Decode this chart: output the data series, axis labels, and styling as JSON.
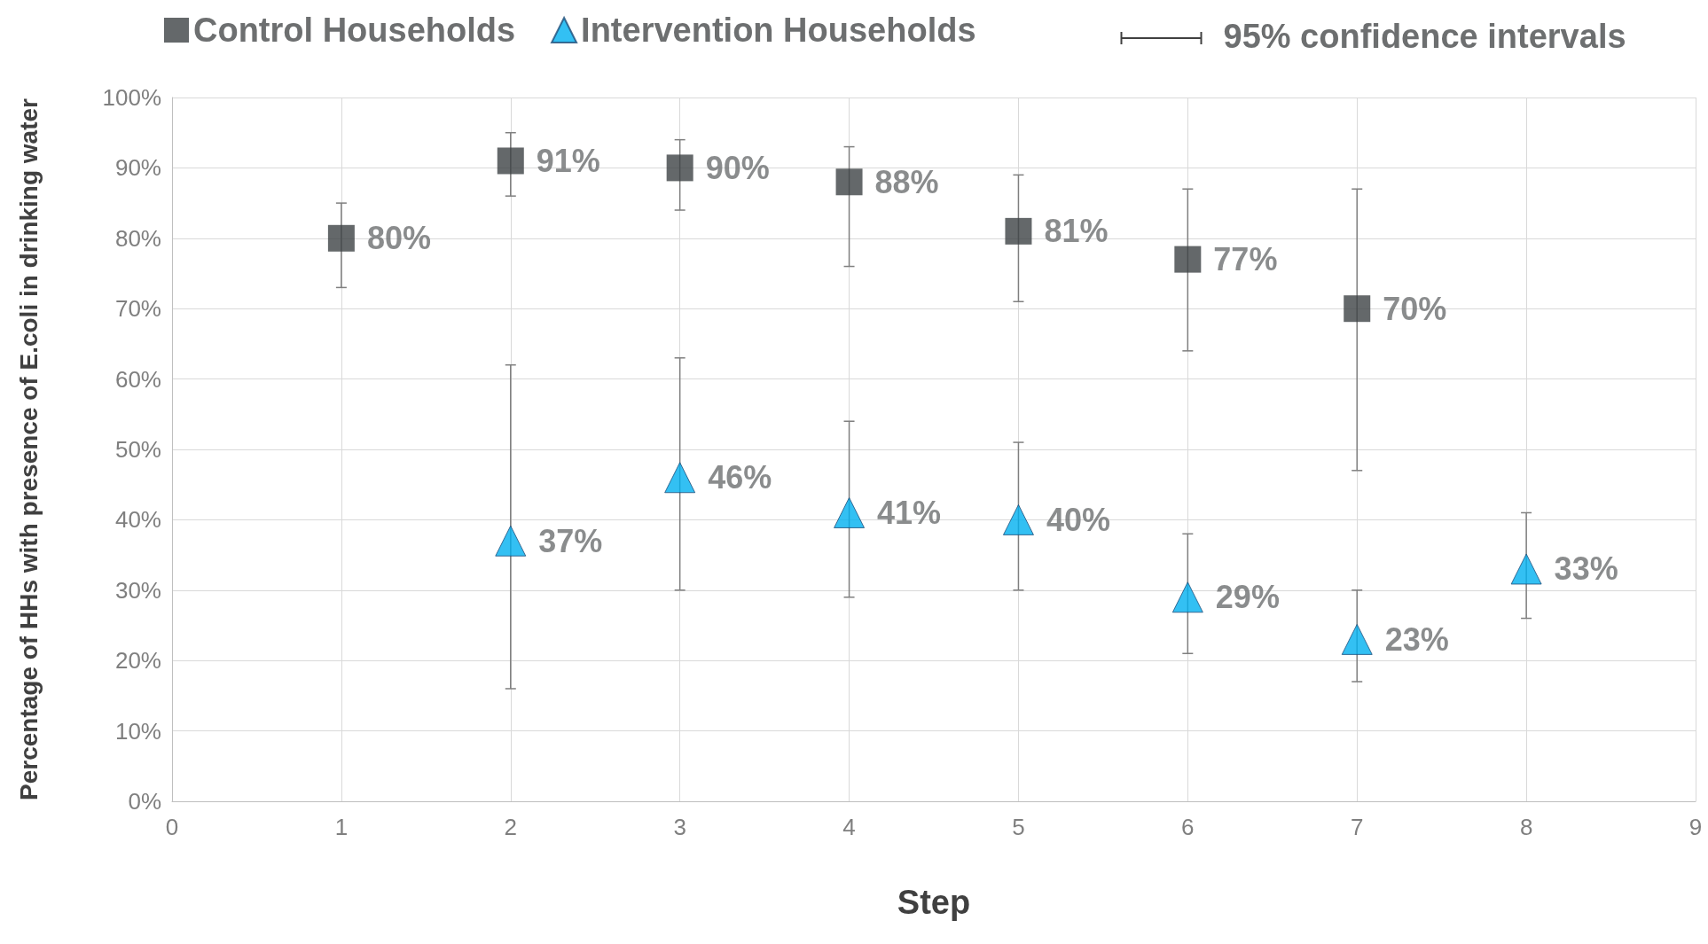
{
  "chart_data": {
    "type": "scatter",
    "xlabel": "Step",
    "ylabel": "Percentage of HHs with presence of E.coli in drinking water",
    "xlim": [
      0,
      9
    ],
    "xticks": [
      0,
      1,
      2,
      3,
      4,
      5,
      6,
      7,
      8,
      9
    ],
    "ylim": [
      0,
      100
    ],
    "yticks": [
      {
        "value": 0,
        "label": "0%"
      },
      {
        "value": 10,
        "label": "10%"
      },
      {
        "value": 20,
        "label": "20%"
      },
      {
        "value": 30,
        "label": "30%"
      },
      {
        "value": 40,
        "label": "40%"
      },
      {
        "value": 50,
        "label": "50%"
      },
      {
        "value": 60,
        "label": "60%"
      },
      {
        "value": 70,
        "label": "70%"
      },
      {
        "value": 80,
        "label": "80%"
      },
      {
        "value": 90,
        "label": "90%"
      },
      {
        "value": 100,
        "label": "100%"
      }
    ],
    "grid": true,
    "legend": "top",
    "annotations": [
      "95% confidence intervals"
    ],
    "series": [
      {
        "name": "Control Households",
        "color": "#3d4245",
        "marker": "square",
        "x": [
          1,
          2,
          3,
          4,
          5,
          6,
          7
        ],
        "values": [
          80,
          91,
          90,
          88,
          81,
          77,
          70
        ],
        "value_labels": [
          "80%",
          "91%",
          "90%",
          "88%",
          "81%",
          "77%",
          "70%"
        ],
        "errors": [
          [
            73,
            85
          ],
          [
            86,
            95
          ],
          [
            84,
            94
          ],
          [
            76,
            93
          ],
          [
            71,
            89
          ],
          [
            64,
            87
          ],
          [
            47,
            87
          ]
        ]
      },
      {
        "name": "Intervention Households",
        "color": "#00b0f0",
        "marker": "triangle",
        "x": [
          2,
          3,
          4,
          5,
          6,
          7,
          8
        ],
        "values": [
          37,
          46,
          41,
          40,
          29,
          23,
          33
        ],
        "value_labels": [
          "37%",
          "46%",
          "41%",
          "40%",
          "29%",
          "23%",
          "33%"
        ],
        "errors": [
          [
            16,
            62
          ],
          [
            30,
            63
          ],
          [
            29,
            54
          ],
          [
            30,
            51
          ],
          [
            21,
            38
          ],
          [
            17,
            30
          ],
          [
            26,
            41
          ]
        ]
      }
    ]
  }
}
